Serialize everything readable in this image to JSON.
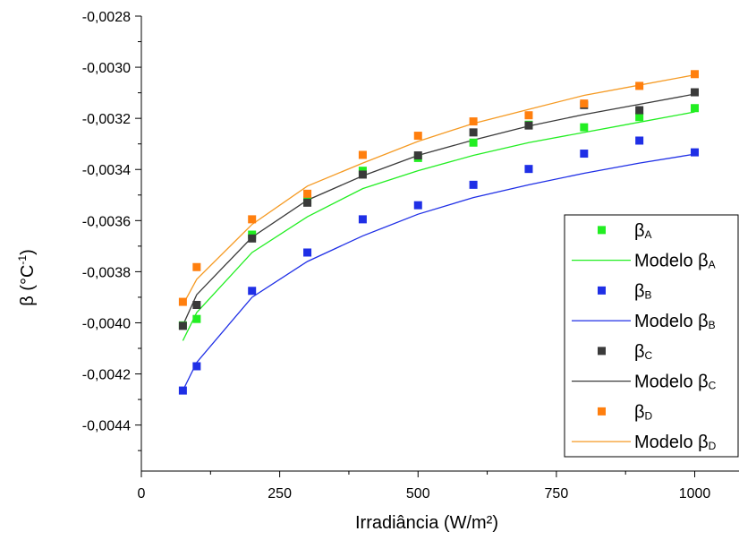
{
  "chart_data": {
    "type": "scatter",
    "title": "",
    "xlabel": "Irradiância (W/m²)",
    "ylabel_main": "β (°C",
    "ylabel_sup": "-1",
    "ylabel_close": ")",
    "xlim": [
      0,
      1080
    ],
    "ylim": [
      -0.00458,
      -0.0028
    ],
    "x_ticks": [
      0,
      250,
      500,
      750,
      1000
    ],
    "x_tick_labels": [
      "0",
      "250",
      "500",
      "750",
      "1000"
    ],
    "y_ticks": [
      -0.0044,
      -0.0042,
      -0.004,
      -0.0038,
      -0.0036,
      -0.0034,
      -0.0032,
      -0.003,
      -0.0028
    ],
    "y_tick_labels": [
      "-0,0044",
      "-0,0042",
      "-0,0040",
      "-0,0038",
      "-0,0036",
      "-0,0034",
      "-0,0032",
      "-0,0030",
      "-0,0028"
    ],
    "grid": false,
    "legend_position": "bottom-right",
    "x": [
      75,
      100,
      200,
      300,
      400,
      500,
      600,
      700,
      800,
      900,
      1000
    ],
    "series": [
      {
        "key": "A",
        "kind": "points",
        "legend_main": "β",
        "legend_sub": "A",
        "color": "#22ee22",
        "values": [
          -0.00401,
          -0.003985,
          -0.003655,
          -0.00352,
          -0.003405,
          -0.003355,
          -0.003295,
          -0.003225,
          -0.003235,
          -0.003195,
          -0.00316
        ]
      },
      {
        "key": "A",
        "kind": "line",
        "legend_main": "Modelo β",
        "legend_sub": "A",
        "color": "#22ee22",
        "values": [
          -0.00407,
          -0.00396,
          -0.003725,
          -0.003585,
          -0.003475,
          -0.003405,
          -0.003345,
          -0.003295,
          -0.003255,
          -0.003215,
          -0.003175
        ]
      },
      {
        "key": "B",
        "kind": "points",
        "legend_main": "β",
        "legend_sub": "B",
        "color": "#1f2fe6",
        "values": [
          -0.004265,
          -0.00417,
          -0.003875,
          -0.003725,
          -0.003595,
          -0.00354,
          -0.00346,
          -0.003398,
          -0.003338,
          -0.003287,
          -0.003333
        ]
      },
      {
        "key": "B",
        "kind": "line",
        "legend_main": "Modelo β",
        "legend_sub": "B",
        "color": "#1f2fe6",
        "values": [
          -0.004265,
          -0.004155,
          -0.0039,
          -0.00376,
          -0.00366,
          -0.003575,
          -0.00351,
          -0.00346,
          -0.003415,
          -0.003375,
          -0.00334
        ]
      },
      {
        "key": "C",
        "kind": "points",
        "legend_main": "β",
        "legend_sub": "C",
        "color": "#3a3a3a",
        "values": [
          -0.004012,
          -0.00393,
          -0.00367,
          -0.00353,
          -0.00342,
          -0.003345,
          -0.003255,
          -0.003228,
          -0.003148,
          -0.003168,
          -0.003098
        ]
      },
      {
        "key": "C",
        "kind": "line",
        "legend_main": "Modelo β",
        "legend_sub": "C",
        "color": "#3a3a3a",
        "values": [
          -0.00401,
          -0.00389,
          -0.003665,
          -0.00352,
          -0.003425,
          -0.003345,
          -0.003285,
          -0.00323,
          -0.003185,
          -0.003145,
          -0.003105
        ]
      },
      {
        "key": "D",
        "kind": "points",
        "legend_main": "β",
        "legend_sub": "D",
        "color": "#ff7f0e",
        "values": [
          -0.003918,
          -0.003782,
          -0.003595,
          -0.003495,
          -0.003343,
          -0.003268,
          -0.003212,
          -0.003188,
          -0.003142,
          -0.003073,
          -0.003027
        ]
      },
      {
        "key": "D",
        "kind": "line",
        "legend_main": "Modelo β",
        "legend_sub": "D",
        "color": "#f59a23",
        "values": [
          -0.00393,
          -0.00383,
          -0.003615,
          -0.003465,
          -0.003375,
          -0.00329,
          -0.00322,
          -0.003165,
          -0.00311,
          -0.00307,
          -0.00303
        ]
      }
    ]
  }
}
